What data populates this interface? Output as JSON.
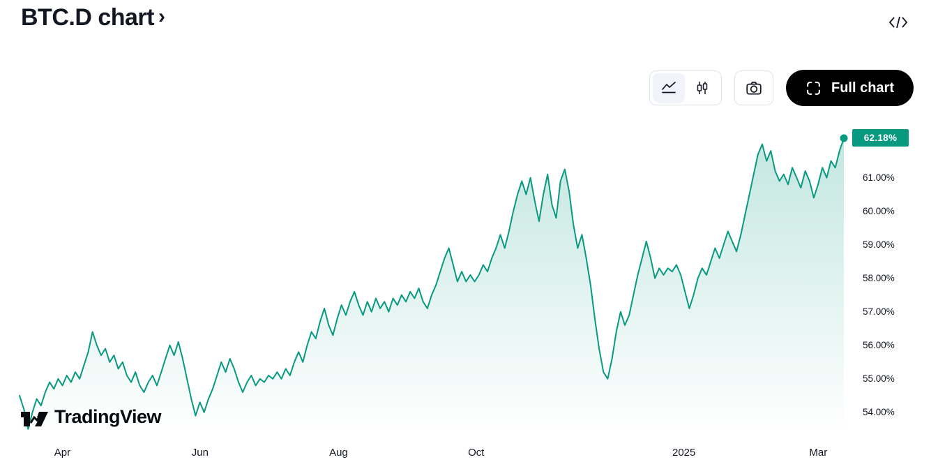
{
  "header": {
    "title": "BTC.D chart",
    "chevron": "›"
  },
  "toolbar": {
    "full_chart_label": "Full chart",
    "icons": {
      "style_area": "area-chart-icon",
      "style_candles": "candlestick-chart-icon",
      "snapshot": "camera-icon",
      "embed": "embed-code-icon",
      "fullscreen": "fullscreen-corners-icon"
    }
  },
  "footer": {
    "brand": "TradingView"
  },
  "chart_data": {
    "type": "area",
    "title": "BTC.D",
    "unit": "%",
    "last_value": 62.18,
    "last_value_label": "62.18%",
    "line_color": "#089981",
    "area_top_opacity": 0.25,
    "area_bottom_opacity": 0,
    "ylim": [
      53.35,
      62.45
    ],
    "grid": false,
    "legend": "none",
    "yticks": [
      {
        "value": 61,
        "label": "61.00%"
      },
      {
        "value": 60,
        "label": "60.00%"
      },
      {
        "value": 59,
        "label": "59.00%"
      },
      {
        "value": 58,
        "label": "58.00%"
      },
      {
        "value": 57,
        "label": "57.00%"
      },
      {
        "value": 56,
        "label": "56.00%"
      },
      {
        "value": 55,
        "label": "55.00%"
      },
      {
        "value": 54,
        "label": "54.00%"
      }
    ],
    "xticks": [
      {
        "label": "Apr",
        "pos": 0.052
      },
      {
        "label": "Jun",
        "pos": 0.219
      },
      {
        "label": "Aug",
        "pos": 0.387
      },
      {
        "label": "Oct",
        "pos": 0.554
      },
      {
        "label": "2025",
        "pos": 0.806
      },
      {
        "label": "Mar",
        "pos": 0.969
      }
    ],
    "values": [
      54.5,
      54.1,
      53.5,
      54.0,
      54.4,
      54.2,
      54.6,
      54.9,
      54.7,
      55.0,
      54.8,
      55.1,
      54.9,
      55.2,
      55.0,
      55.4,
      55.8,
      56.4,
      56.0,
      55.7,
      55.9,
      55.5,
      55.7,
      55.3,
      55.5,
      55.1,
      54.9,
      55.2,
      54.8,
      54.6,
      54.9,
      55.1,
      54.8,
      55.2,
      55.6,
      56.0,
      55.7,
      56.1,
      55.6,
      55.0,
      54.4,
      53.9,
      54.3,
      54.0,
      54.4,
      54.7,
      55.1,
      55.5,
      55.2,
      55.6,
      55.3,
      54.9,
      54.6,
      54.9,
      55.1,
      54.8,
      55.0,
      54.9,
      55.1,
      55.0,
      55.2,
      55.0,
      55.3,
      55.1,
      55.5,
      55.8,
      55.5,
      56.0,
      56.4,
      56.2,
      56.7,
      57.1,
      56.6,
      56.3,
      56.8,
      57.2,
      56.9,
      57.3,
      57.6,
      57.2,
      56.9,
      57.3,
      57.0,
      57.4,
      57.1,
      57.3,
      57.0,
      57.4,
      57.2,
      57.5,
      57.3,
      57.6,
      57.4,
      57.7,
      57.3,
      57.1,
      57.5,
      57.8,
      58.2,
      58.6,
      58.9,
      58.4,
      57.9,
      58.2,
      57.9,
      58.1,
      57.9,
      58.1,
      58.4,
      58.2,
      58.6,
      58.9,
      59.3,
      58.9,
      59.4,
      60.0,
      60.5,
      60.9,
      60.5,
      61.0,
      60.3,
      59.7,
      60.5,
      61.1,
      60.2,
      59.8,
      60.9,
      61.25,
      60.6,
      59.6,
      58.9,
      59.3,
      58.6,
      57.8,
      56.8,
      55.9,
      55.2,
      55.0,
      55.6,
      56.4,
      57.0,
      56.6,
      56.9,
      57.5,
      58.1,
      58.6,
      59.1,
      58.6,
      58.0,
      58.3,
      58.1,
      58.3,
      58.2,
      58.4,
      58.1,
      57.6,
      57.1,
      57.5,
      58.0,
      58.3,
      58.1,
      58.5,
      58.9,
      58.6,
      59.0,
      59.4,
      59.1,
      58.8,
      59.3,
      59.9,
      60.5,
      61.1,
      61.7,
      62.0,
      61.5,
      61.8,
      61.2,
      60.9,
      61.1,
      60.8,
      61.3,
      61.0,
      60.7,
      61.2,
      60.9,
      60.4,
      60.8,
      61.3,
      61.0,
      61.5,
      61.3,
      61.8,
      62.18
    ]
  }
}
